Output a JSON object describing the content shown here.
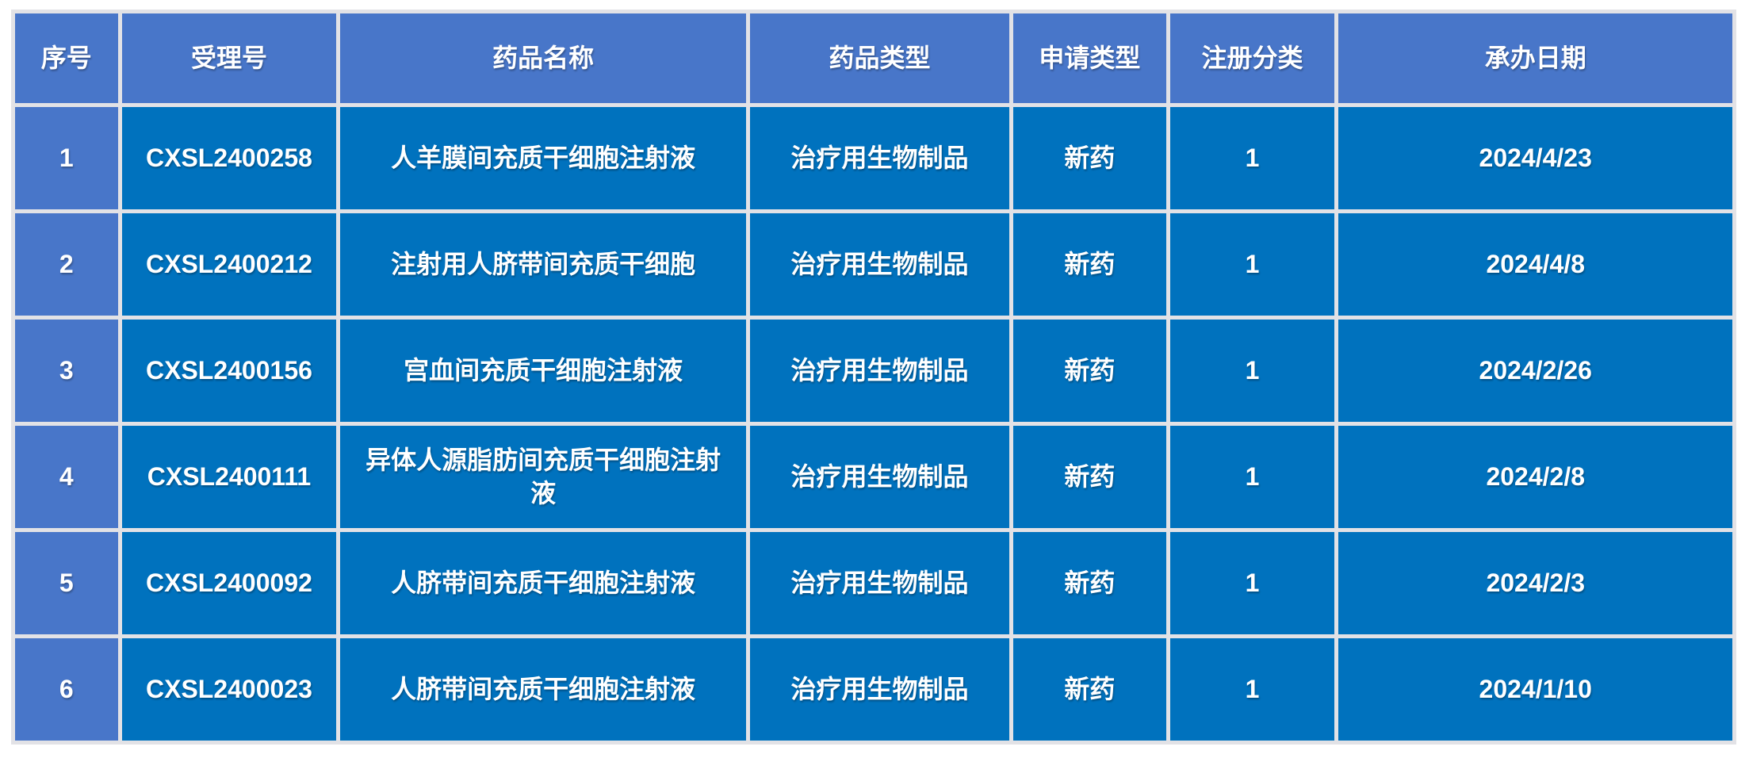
{
  "chart_data": {
    "type": "table",
    "title": "",
    "columns": [
      "序号",
      "受理号",
      "药品名称",
      "药品类型",
      "申请类型",
      "注册分类",
      "承办日期"
    ],
    "rows": [
      [
        "1",
        "CXSL2400258",
        "人羊膜间充质干细胞注射液",
        "治疗用生物制品",
        "新药",
        "1",
        "2024/4/23"
      ],
      [
        "2",
        "CXSL2400212",
        "注射用人脐带间充质干细胞",
        "治疗用生物制品",
        "新药",
        "1",
        "2024/4/8"
      ],
      [
        "3",
        "CXSL2400156",
        "宫血间充质干细胞注射液",
        "治疗用生物制品",
        "新药",
        "1",
        "2024/2/26"
      ],
      [
        "4",
        "CXSL2400111",
        "异体人源脂肪间充质干细胞注射液",
        "治疗用生物制品",
        "新药",
        "1",
        "2024/2/8"
      ],
      [
        "5",
        "CXSL2400092",
        "人脐带间充质干细胞注射液",
        "治疗用生物制品",
        "新药",
        "1",
        "2024/2/3"
      ],
      [
        "6",
        "CXSL2400023",
        "人脐带间充质干细胞注射液",
        "治疗用生物制品",
        "新药",
        "1",
        "2024/1/10"
      ]
    ]
  },
  "table": {
    "headers": {
      "index": "序号",
      "acceptance_no": "受理号",
      "drug_name": "药品名称",
      "drug_type": "药品类型",
      "application_type": "申请类型",
      "registration_class": "注册分类",
      "acceptance_date": "承办日期"
    },
    "rows": [
      [
        "1",
        "CXSL2400258",
        "人羊膜间充质干细胞注射液",
        "治疗用生物制品",
        "新药",
        "1",
        "2024/4/23"
      ],
      [
        "2",
        "CXSL2400212",
        "注射用人脐带间充质干细胞",
        "治疗用生物制品",
        "新药",
        "1",
        "2024/4/8"
      ],
      [
        "3",
        "CXSL2400156",
        "宫血间充质干细胞注射液",
        "治疗用生物制品",
        "新药",
        "1",
        "2024/2/26"
      ],
      [
        "4",
        "CXSL2400111",
        "异体人源脂肪间充质干细胞注射液",
        "治疗用生物制品",
        "新药",
        "1",
        "2024/2/8"
      ],
      [
        "5",
        "CXSL2400092",
        "人脐带间充质干细胞注射液",
        "治疗用生物制品",
        "新药",
        "1",
        "2024/2/3"
      ],
      [
        "6",
        "CXSL2400023",
        "人脐带间充质干细胞注射液",
        "治疗用生物制品",
        "新药",
        "1",
        "2024/1/10"
      ]
    ]
  },
  "colors": {
    "header_bg": "#4876C9",
    "index_column_bg": "#4876C9",
    "body_bg": "#0072BE",
    "gridline": "#E2E2E6",
    "text": "#FFFFFF",
    "page_bg": "#FFFFFF"
  }
}
